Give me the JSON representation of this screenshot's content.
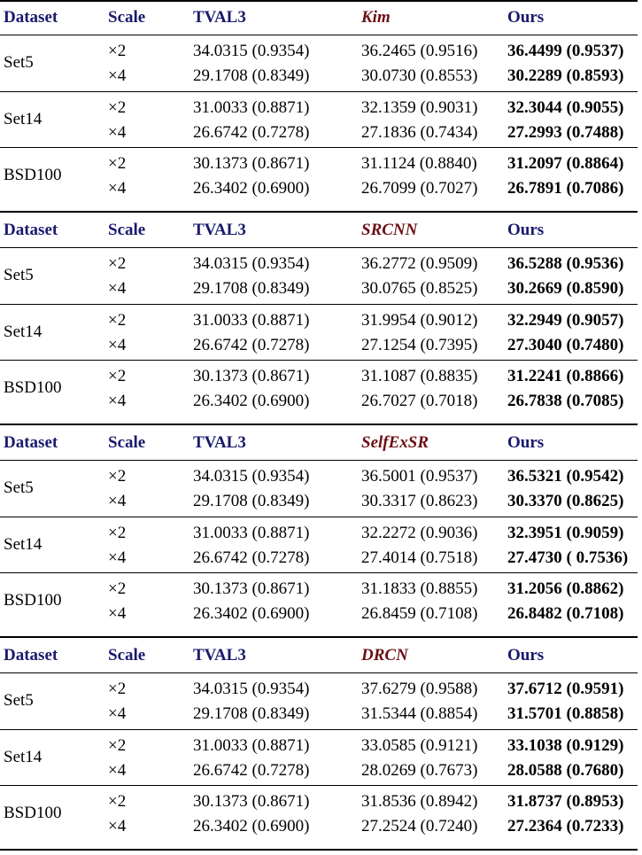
{
  "style": {
    "header_color": "#1a1a6e",
    "compare_header_color": "#6b0f14",
    "text_color": "#000000"
  },
  "tables": [
    {
      "header": {
        "dataset": "Dataset",
        "scale": "Scale",
        "baseline": "TVAL3",
        "compare": "Kim",
        "ours": "Ours"
      },
      "groups": [
        {
          "dataset": "Set5",
          "rows": [
            {
              "scale": "×2",
              "baseline": "34.0315 (0.9354)",
              "compare": "36.2465 (0.9516)",
              "ours": "36.4499 (0.9537)"
            },
            {
              "scale": "×4",
              "baseline": "29.1708 (0.8349)",
              "compare": "30.0730 (0.8553)",
              "ours": "30.2289 (0.8593)"
            }
          ]
        },
        {
          "dataset": "Set14",
          "rows": [
            {
              "scale": "×2",
              "baseline": "31.0033 (0.8871)",
              "compare": "32.1359 (0.9031)",
              "ours": "32.3044 (0.9055)"
            },
            {
              "scale": "×4",
              "baseline": "26.6742 (0.7278)",
              "compare": "27.1836 (0.7434)",
              "ours": "27.2993 (0.7488)"
            }
          ]
        },
        {
          "dataset": "BSD100",
          "rows": [
            {
              "scale": "×2",
              "baseline": "30.1373 (0.8671)",
              "compare": "31.1124 (0.8840)",
              "ours": "31.2097 (0.8864)"
            },
            {
              "scale": "×4",
              "baseline": "26.3402 (0.6900)",
              "compare": "26.7099 (0.7027)",
              "ours": "26.7891 (0.7086)"
            }
          ]
        }
      ]
    },
    {
      "header": {
        "dataset": "Dataset",
        "scale": "Scale",
        "baseline": "TVAL3",
        "compare": "SRCNN",
        "ours": "Ours"
      },
      "groups": [
        {
          "dataset": "Set5",
          "rows": [
            {
              "scale": "×2",
              "baseline": "34.0315 (0.9354)",
              "compare": "36.2772 (0.9509)",
              "ours": "36.5288 (0.9536)"
            },
            {
              "scale": "×4",
              "baseline": "29.1708 (0.8349)",
              "compare": "30.0765 (0.8525)",
              "ours": "30.2669 (0.8590)"
            }
          ]
        },
        {
          "dataset": "Set14",
          "rows": [
            {
              "scale": "×2",
              "baseline": "31.0033 (0.8871)",
              "compare": "31.9954 (0.9012)",
              "ours": "32.2949 (0.9057)"
            },
            {
              "scale": "×4",
              "baseline": "26.6742 (0.7278)",
              "compare": "27.1254 (0.7395)",
              "ours": "27.3040 (0.7480)"
            }
          ]
        },
        {
          "dataset": "BSD100",
          "rows": [
            {
              "scale": "×2",
              "baseline": "30.1373 (0.8671)",
              "compare": "31.1087 (0.8835)",
              "ours": "31.2241 (0.8866)"
            },
            {
              "scale": "×4",
              "baseline": "26.3402 (0.6900)",
              "compare": "26.7027 (0.7018)",
              "ours": "26.7838 (0.7085)"
            }
          ]
        }
      ]
    },
    {
      "header": {
        "dataset": "Dataset",
        "scale": "Scale",
        "baseline": "TVAL3",
        "compare": "SelfExSR",
        "ours": "Ours"
      },
      "groups": [
        {
          "dataset": "Set5",
          "rows": [
            {
              "scale": "×2",
              "baseline": "34.0315 (0.9354)",
              "compare": "36.5001 (0.9537)",
              "ours": "36.5321 (0.9542)"
            },
            {
              "scale": "×4",
              "baseline": "29.1708 (0.8349)",
              "compare": "30.3317 (0.8623)",
              "ours": "30.3370 (0.8625)"
            }
          ]
        },
        {
          "dataset": "Set14",
          "rows": [
            {
              "scale": "×2",
              "baseline": "31.0033 (0.8871)",
              "compare": "32.2272 (0.9036)",
              "ours": "32.3951 (0.9059)"
            },
            {
              "scale": "×4",
              "baseline": "26.6742 (0.7278)",
              "compare": "27.4014 (0.7518)",
              "ours": "27.4730 ( 0.7536)"
            }
          ]
        },
        {
          "dataset": "BSD100",
          "rows": [
            {
              "scale": "×2",
              "baseline": "30.1373 (0.8671)",
              "compare": "31.1833 (0.8855)",
              "ours": "31.2056 (0.8862)"
            },
            {
              "scale": "×4",
              "baseline": "26.3402 (0.6900)",
              "compare": "26.8459 (0.7108)",
              "ours": "26.8482 (0.7108)"
            }
          ]
        }
      ]
    },
    {
      "header": {
        "dataset": "Dataset",
        "scale": "Scale",
        "baseline": "TVAL3",
        "compare": "DRCN",
        "ours": "Ours"
      },
      "groups": [
        {
          "dataset": "Set5",
          "rows": [
            {
              "scale": "×2",
              "baseline": "34.0315 (0.9354)",
              "compare": "37.6279 (0.9588)",
              "ours": "37.6712 (0.9591)"
            },
            {
              "scale": "×4",
              "baseline": "29.1708 (0.8349)",
              "compare": "31.5344 (0.8854)",
              "ours": "31.5701 (0.8858)"
            }
          ]
        },
        {
          "dataset": "Set14",
          "rows": [
            {
              "scale": "×2",
              "baseline": "31.0033 (0.8871)",
              "compare": "33.0585 (0.9121)",
              "ours": "33.1038 (0.9129)"
            },
            {
              "scale": "×4",
              "baseline": "26.6742 (0.7278)",
              "compare": "28.0269 (0.7673)",
              "ours": "28.0588 (0.7680)"
            }
          ]
        },
        {
          "dataset": "BSD100",
          "rows": [
            {
              "scale": "×2",
              "baseline": "30.1373 (0.8671)",
              "compare": "31.8536 (0.8942)",
              "ours": "31.8737 (0.8953)"
            },
            {
              "scale": "×4",
              "baseline": "26.3402 (0.6900)",
              "compare": "27.2524 (0.7240)",
              "ours": "27.2364 (0.7233)"
            }
          ]
        }
      ]
    }
  ]
}
